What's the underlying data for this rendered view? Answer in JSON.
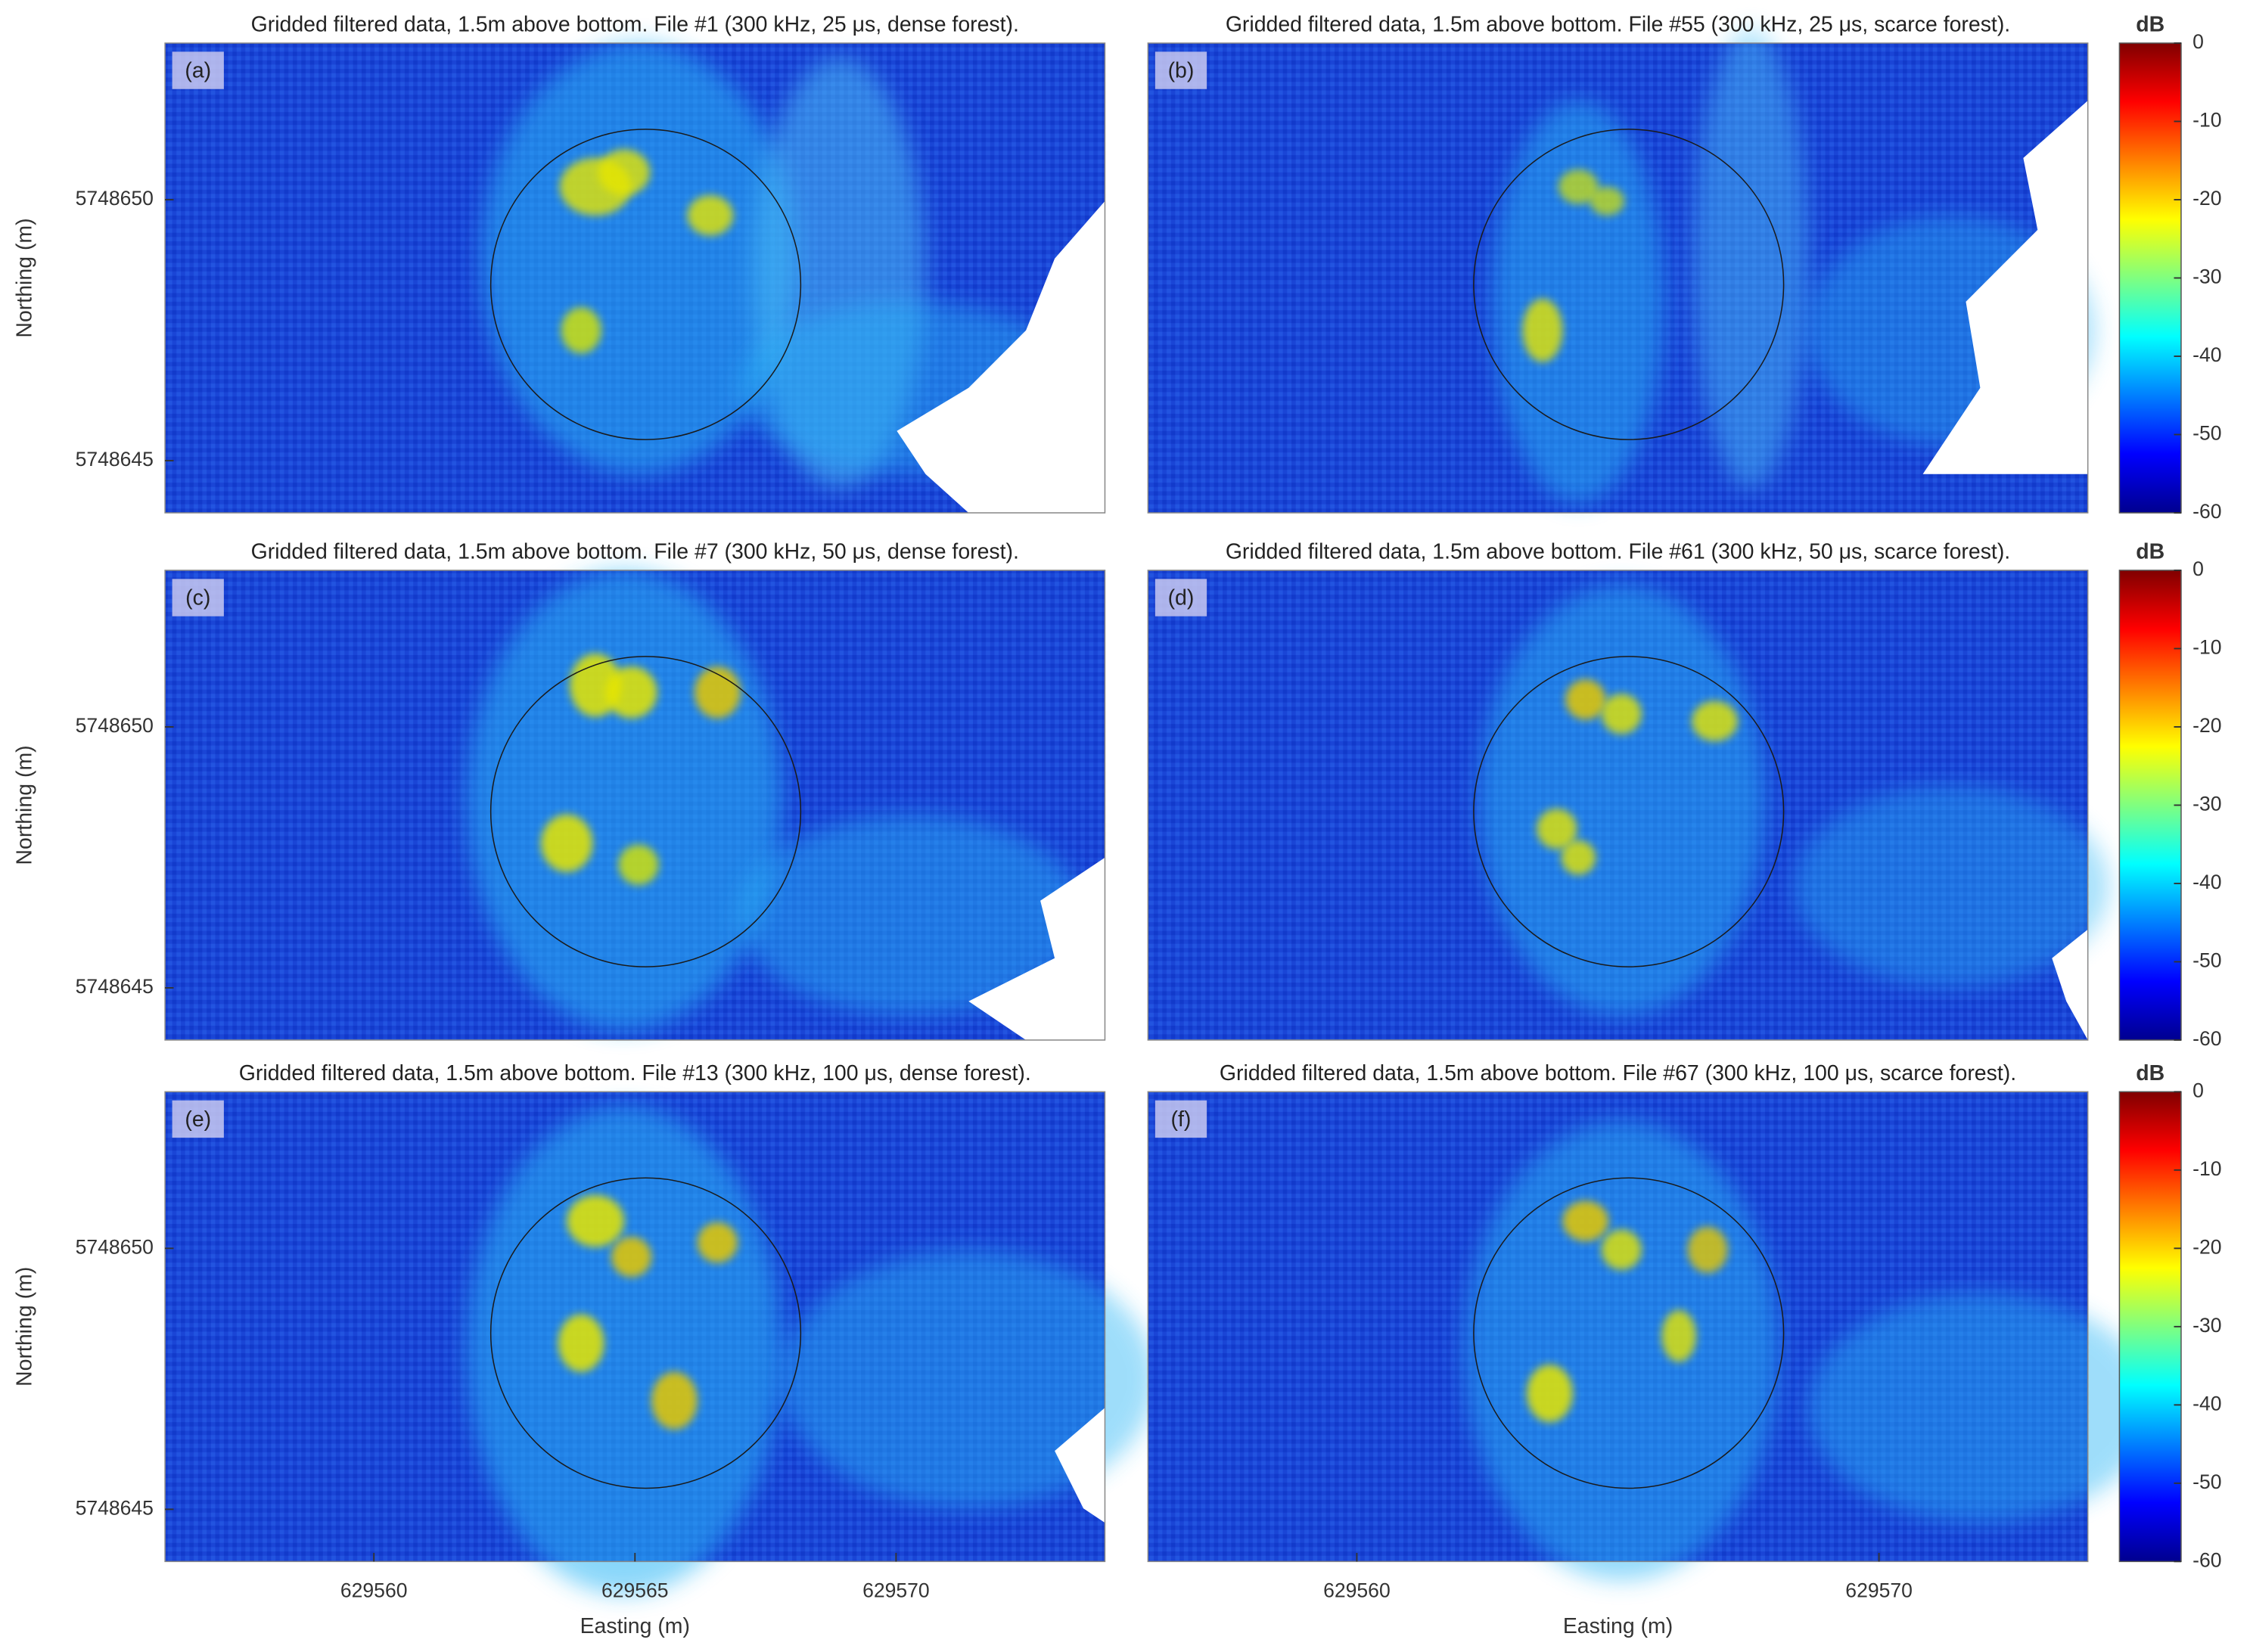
{
  "chart_data": [
    {
      "type": "heatmap",
      "title": "Gridded filtered data, 1.5m above bottom. File #1 (300 kHz, 25 μs, dense forest).",
      "panel_label": "(a)",
      "xlim": [
        629556,
        629574
      ],
      "ylim": [
        5748644,
        5748653
      ],
      "yticks": [
        5748645,
        5748650
      ],
      "ylabel": "Northing (m)"
    },
    {
      "type": "heatmap",
      "title": "Gridded filtered data, 1.5m above bottom. File #55 (300 kHz, 25 μs, scarce forest).",
      "panel_label": "(b)",
      "xlim": [
        629556,
        629574
      ],
      "ylim": [
        5748644,
        5748653
      ],
      "colorbar": {
        "label": "dB",
        "lim": [
          -60,
          0
        ],
        "ticks": [
          0,
          -10,
          -20,
          -30,
          -40,
          -50,
          -60
        ]
      }
    },
    {
      "type": "heatmap",
      "title": "Gridded filtered data, 1.5m above bottom. File #7 (300 kHz, 50 μs, dense forest).",
      "panel_label": "(c)",
      "xlim": [
        629556,
        629574
      ],
      "ylim": [
        5748644,
        5748653
      ],
      "yticks": [
        5748645,
        5748650
      ],
      "ylabel": "Northing (m)"
    },
    {
      "type": "heatmap",
      "title": "Gridded filtered data, 1.5m above bottom. File #61 (300 kHz, 50 μs, scarce forest).",
      "panel_label": "(d)",
      "xlim": [
        629556,
        629574
      ],
      "ylim": [
        5748644,
        5748653
      ],
      "colorbar": {
        "label": "dB",
        "lim": [
          -60,
          0
        ],
        "ticks": [
          0,
          -10,
          -20,
          -30,
          -40,
          -50,
          -60
        ]
      }
    },
    {
      "type": "heatmap",
      "title": "Gridded filtered data, 1.5m above bottom. File #13 (300 kHz, 100 μs, dense forest).",
      "panel_label": "(e)",
      "xlim": [
        629556,
        629574
      ],
      "ylim": [
        5748644,
        5748653
      ],
      "yticks": [
        5748645,
        5748650
      ],
      "ylabel": "Northing (m)",
      "xticks": [
        629560,
        629565,
        629570
      ],
      "xlabel": "Easting (m)"
    },
    {
      "type": "heatmap",
      "title": "Gridded filtered data, 1.5m above bottom. File #67 (300 kHz, 100 μs, scarce forest).",
      "panel_label": "(f)",
      "xlim": [
        629556,
        629574
      ],
      "ylim": [
        5748644,
        5748653
      ],
      "xticks": [
        629560,
        629570
      ],
      "xlabel": "Easting (m)",
      "colorbar": {
        "label": "dB",
        "lim": [
          -60,
          0
        ],
        "ticks": [
          0,
          -10,
          -20,
          -30,
          -40,
          -50,
          -60
        ]
      }
    }
  ]
}
